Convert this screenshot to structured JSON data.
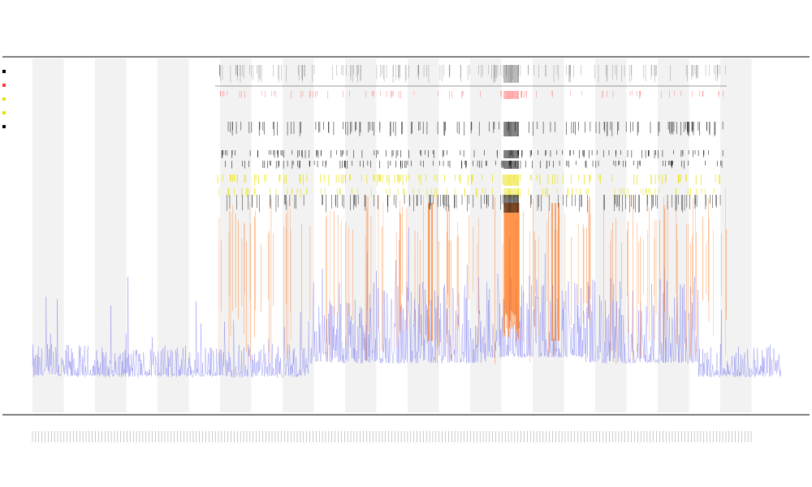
{
  "chart_data": {
    "type": "line",
    "title": "",
    "subtitle_lines": [
      "",
      ""
    ],
    "xlabel": "",
    "ylabel": "",
    "legend_entries": [],
    "legend_position": "left",
    "x_categories_count": 229,
    "x_tick_labels_count": 229,
    "grid": false,
    "alternating_bands": true,
    "ylim": [
      0,
      1
    ],
    "series": [
      {
        "color": "#5555ee",
        "style": "noisy-line",
        "kind": "baseline-signal"
      },
      {
        "color": "#ff6600",
        "style": "spikes",
        "kind": "peak-signal"
      },
      {
        "color": "#e8e000",
        "style": "markers",
        "kind": "marker-row"
      },
      {
        "color": "#000000",
        "style": "markers",
        "kind": "marker-rows"
      },
      {
        "color": "#ff3333",
        "style": "ticks",
        "kind": "top-marker-row"
      }
    ],
    "band_color": "#f2f2f2",
    "dense_region_x_range": [
      0.63,
      0.65
    ]
  },
  "colors": {
    "band": "#f2f2f2",
    "axis": "#333333",
    "baseline": "#5555ee",
    "peak": "#ff6600",
    "yellow": "#e8e000",
    "marker": "#000000",
    "red": "#ff3333"
  }
}
